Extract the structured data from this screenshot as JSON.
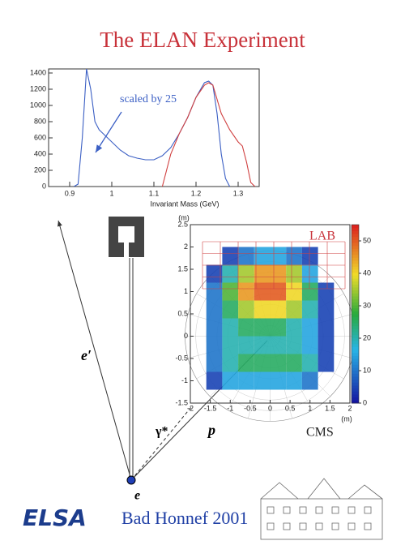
{
  "title": "The ELAN Experiment",
  "chart_data": [
    {
      "type": "line",
      "xlabel": "Invariant Mass (GeV)",
      "annotation": "scaled by 25",
      "xlim": [
        0.85,
        1.35
      ],
      "xticks": [
        0.9,
        1,
        1.1,
        1.2,
        1.3
      ],
      "ylim": [
        0,
        1450
      ],
      "yticks": [
        0,
        200,
        400,
        600,
        800,
        1000,
        1200,
        1400
      ],
      "series": [
        {
          "color": "#3b5fc4",
          "x": [
            0.91,
            0.92,
            0.93,
            0.94,
            0.95,
            0.96,
            0.97,
            0.98,
            1.0,
            1.02,
            1.04,
            1.06,
            1.08,
            1.1,
            1.12,
            1.14,
            1.16,
            1.18,
            1.2,
            1.22,
            1.23,
            1.24,
            1.25,
            1.26,
            1.27,
            1.28
          ],
          "values": [
            0,
            30,
            600,
            1450,
            1200,
            800,
            700,
            650,
            550,
            450,
            380,
            350,
            330,
            330,
            380,
            480,
            650,
            850,
            1100,
            1280,
            1300,
            1250,
            900,
            400,
            100,
            0
          ]
        },
        {
          "color": "#d04040",
          "x": [
            1.12,
            1.14,
            1.16,
            1.18,
            1.2,
            1.22,
            1.23,
            1.24,
            1.26,
            1.28,
            1.3,
            1.31,
            1.32,
            1.33,
            1.34
          ],
          "values": [
            0,
            400,
            650,
            850,
            1100,
            1250,
            1280,
            1250,
            900,
            700,
            550,
            500,
            300,
            50,
            0
          ]
        }
      ]
    },
    {
      "type": "heatmap",
      "xlabel": "(m)",
      "ylabel": "(m)",
      "annotations": [
        "LAB",
        "CMS"
      ],
      "xlim": [
        -2,
        2
      ],
      "xticks": [
        -2,
        -1.5,
        -1,
        -0.5,
        0,
        0.5,
        1,
        1.5,
        2
      ],
      "ylim": [
        -1.5,
        2.5
      ],
      "yticks": [
        -1.5,
        -1,
        -0.5,
        0,
        0.5,
        1,
        1.5,
        2,
        2.5
      ],
      "xbins": [
        -1.6,
        -1.2,
        -0.8,
        -0.4,
        0,
        0.4,
        0.8,
        1.2,
        1.6
      ],
      "ybins": [
        -1.2,
        -0.8,
        -0.4,
        0,
        0.4,
        0.8,
        1.2,
        1.6,
        2.0
      ],
      "values": [
        [
          5,
          15,
          15,
          15,
          15,
          15,
          10,
          0
        ],
        [
          10,
          20,
          25,
          25,
          25,
          25,
          20,
          5
        ],
        [
          10,
          20,
          20,
          20,
          20,
          20,
          15,
          5
        ],
        [
          10,
          20,
          25,
          25,
          25,
          20,
          15,
          5
        ],
        [
          10,
          25,
          35,
          40,
          40,
          35,
          20,
          5
        ],
        [
          10,
          30,
          45,
          50,
          50,
          40,
          25,
          5
        ],
        [
          5,
          20,
          35,
          45,
          45,
          35,
          15,
          0
        ],
        [
          0,
          5,
          10,
          15,
          15,
          10,
          5,
          0
        ]
      ],
      "zlim": [
        0,
        55
      ],
      "zticks": [
        0,
        10,
        20,
        30,
        40,
        50
      ]
    }
  ],
  "diagram": {
    "e_out": "e′",
    "photon": "γ*",
    "proton": "p",
    "e_in": "e"
  },
  "footer": {
    "logo": "ELSA",
    "text": "Bad Honnef 2001"
  }
}
